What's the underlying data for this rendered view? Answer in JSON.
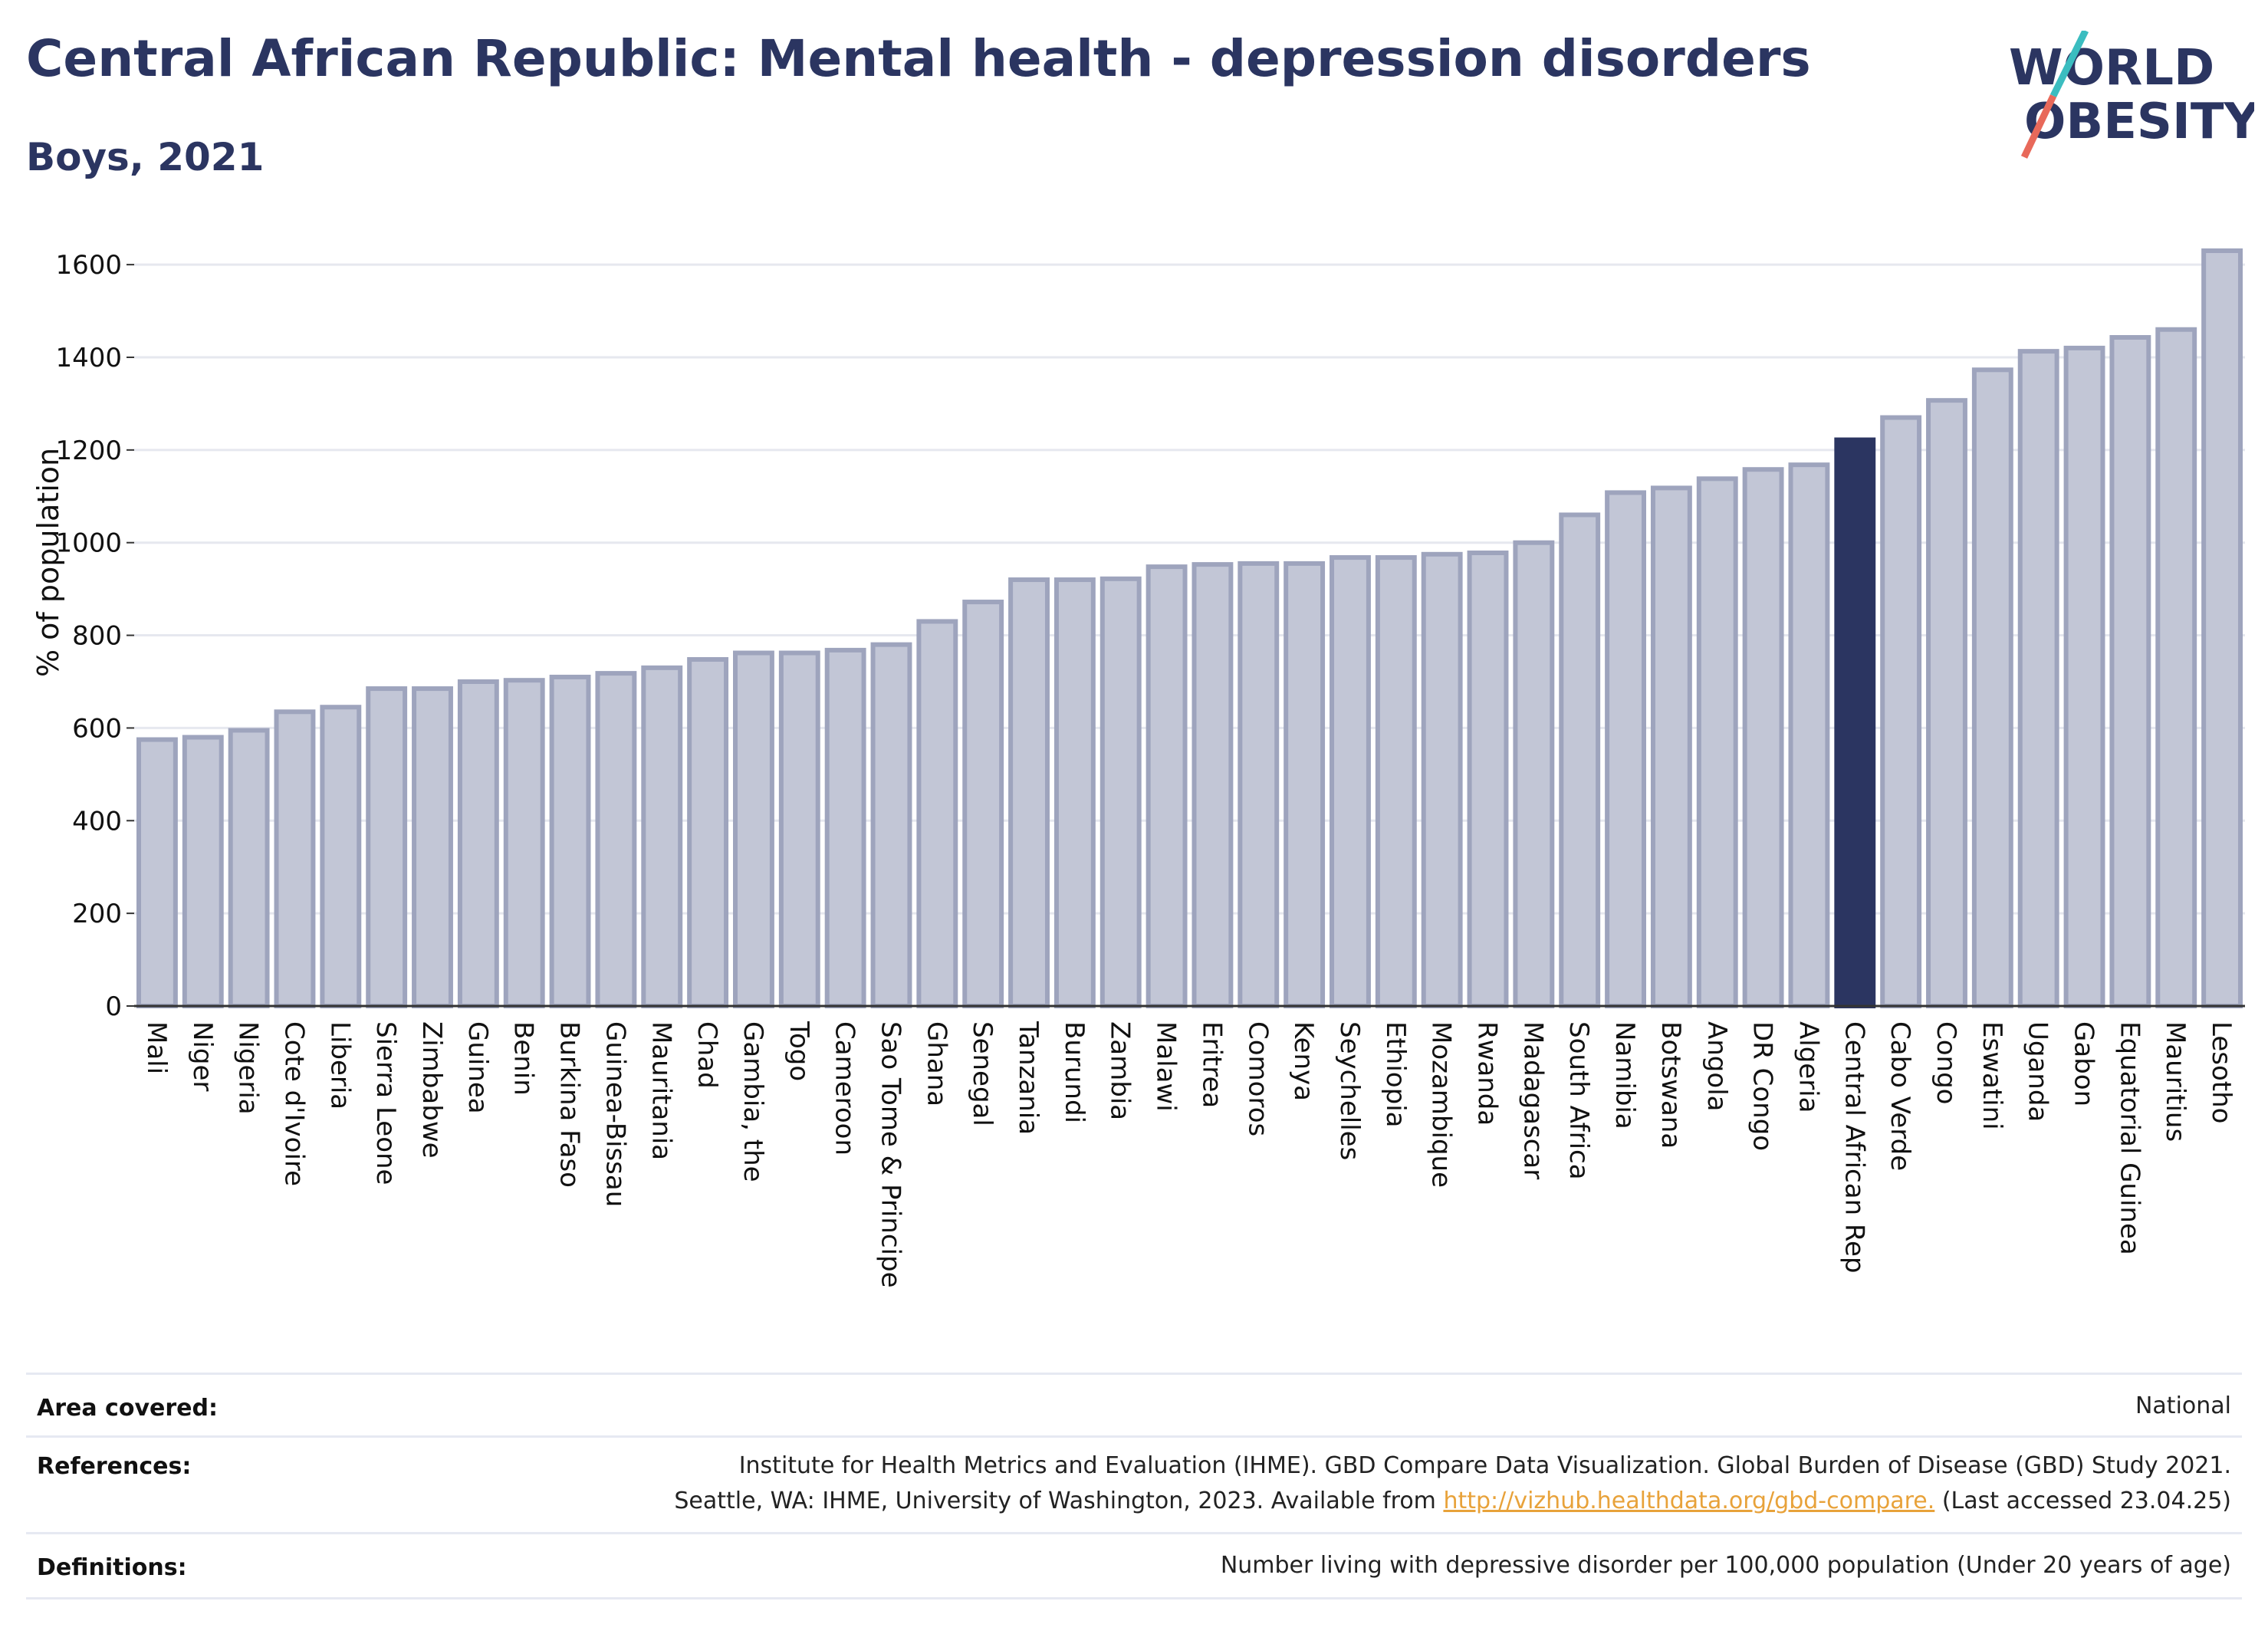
{
  "header": {
    "title": "Central African Republic: Mental health - depression disorders",
    "subtitle": "Boys, 2021"
  },
  "logo": {
    "line1": "WORLD",
    "line2": "OBESITY",
    "slash_colors": [
      "#3bbdc0",
      "#e8695a"
    ]
  },
  "colors": {
    "bar_default": "#c2c6d6",
    "bar_border": "#9ea4bd",
    "bar_highlight": "#2b3561",
    "grid": "#e6e8ef",
    "title": "#2b3561"
  },
  "chart_data": {
    "type": "bar",
    "title": "",
    "xlabel": "",
    "ylabel": "% of population",
    "ylim": [
      0,
      1650
    ],
    "yticks": [
      0,
      200,
      400,
      600,
      800,
      1000,
      1200,
      1400,
      1600
    ],
    "grid": true,
    "highlight": "Central African Rep",
    "categories": [
      "Mali",
      "Niger",
      "Nigeria",
      "Cote d'Ivoire",
      "Liberia",
      "Sierra Leone",
      "Zimbabwe",
      "Guinea",
      "Benin",
      "Burkina Faso",
      "Guinea-Bissau",
      "Mauritania",
      "Chad",
      "Gambia, the",
      "Togo",
      "Cameroon",
      "Sao Tome & Principe",
      "Ghana",
      "Senegal",
      "Tanzania",
      "Burundi",
      "Zambia",
      "Malawi",
      "Eritrea",
      "Comoros",
      "Kenya",
      "Seychelles",
      "Ethiopia",
      "Mozambique",
      "Rwanda",
      "Madagascar",
      "South Africa",
      "Namibia",
      "Botswana",
      "Angola",
      "DR Congo",
      "Algeria",
      "Central African Rep",
      "Cabo Verde",
      "Congo",
      "Eswatini",
      "Uganda",
      "Gabon",
      "Equatorial Guinea",
      "Mauritius",
      "Lesotho"
    ],
    "values": [
      575,
      580,
      595,
      635,
      645,
      685,
      685,
      700,
      703,
      710,
      718,
      730,
      748,
      762,
      762,
      768,
      780,
      830,
      872,
      920,
      920,
      922,
      948,
      953,
      955,
      955,
      968,
      968,
      975,
      978,
      1000,
      1060,
      1108,
      1118,
      1138,
      1158,
      1168,
      1222,
      1270,
      1307,
      1373,
      1413,
      1420,
      1443,
      1460,
      1630
    ]
  },
  "meta": {
    "area_label": "Area covered:",
    "area_value": "National",
    "references_label": "References:",
    "references_line1": "Institute for Health Metrics and Evaluation (IHME). GBD Compare Data Visualization. Global Burden of Disease (GBD) Study 2021.",
    "references_line2_pre": "Seattle, WA: IHME, University of Washington, 2023. Available from ",
    "references_link": "http://vizhub.healthdata.org/gbd-compare.",
    "references_line2_post": " (Last accessed 23.04.25)",
    "definitions_label": "Definitions:",
    "definitions_value": "Number living with depressive disorder per 100,000 population (Under 20 years of age)"
  }
}
